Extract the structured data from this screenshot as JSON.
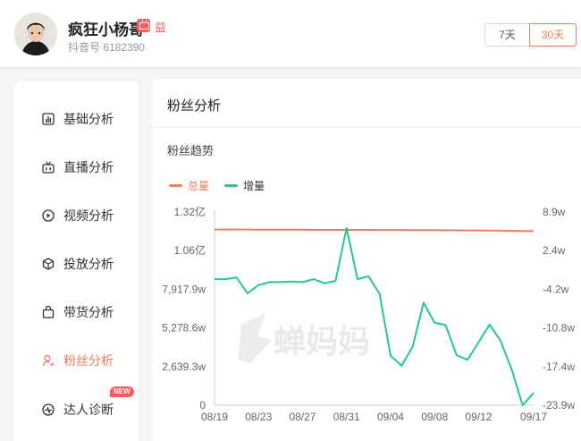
{
  "user": {
    "name": "疯狂小杨哥",
    "vip_label": "益",
    "douyin_id": "抖音号 6182390"
  },
  "range": {
    "options": [
      "7天",
      "30天"
    ],
    "selected": "30天"
  },
  "sidebar": {
    "items": [
      {
        "label": "基础分析",
        "icon": "bar-chart-icon"
      },
      {
        "label": "直播分析",
        "icon": "live-icon"
      },
      {
        "label": "视频分析",
        "icon": "play-circle-icon"
      },
      {
        "label": "投放分析",
        "icon": "cube-icon"
      },
      {
        "label": "带货分析",
        "icon": "shopping-bag-icon"
      },
      {
        "label": "粉丝分析",
        "icon": "user-icon",
        "active": true
      },
      {
        "label": "达人诊断",
        "icon": "diagnosis-icon",
        "badge": "NEW"
      }
    ]
  },
  "main": {
    "title": "粉丝分析",
    "subtitle": "粉丝趋势"
  },
  "watermark": "蝉妈妈",
  "colors": {
    "accent": "#f07c56",
    "total_line": "#f07c56",
    "increment_line": "#25c98e"
  },
  "chart_data": {
    "type": "line",
    "x": [
      "08/19",
      "08/20",
      "08/21",
      "08/22",
      "08/23",
      "08/24",
      "08/25",
      "08/26",
      "08/27",
      "08/28",
      "08/29",
      "08/30",
      "08/31",
      "09/01",
      "09/02",
      "09/03",
      "09/04",
      "09/05",
      "09/06",
      "09/07",
      "09/08",
      "09/09",
      "09/10",
      "09/11",
      "09/12",
      "09/13",
      "09/14",
      "09/15",
      "09/16",
      "09/17"
    ],
    "x_tick_labels": [
      "08/19",
      "08/23",
      "08/27",
      "08/31",
      "09/04",
      "09/08",
      "09/12",
      "09/17"
    ],
    "series": [
      {
        "name": "总量",
        "axis": "left",
        "values": [
          1.2,
          1.2,
          1.2,
          1.2,
          1.199,
          1.199,
          1.199,
          1.199,
          1.199,
          1.198,
          1.198,
          1.198,
          1.198,
          1.198,
          1.198,
          1.197,
          1.197,
          1.197,
          1.196,
          1.196,
          1.196,
          1.195,
          1.195,
          1.194,
          1.194,
          1.193,
          1.192,
          1.191,
          1.19,
          1.189
        ]
      },
      {
        "name": "增量",
        "axis": "right",
        "values": [
          -2.5,
          -2.5,
          -2.2,
          -4.9,
          -3.5,
          -3.0,
          -3.0,
          -2.9,
          -3.0,
          -2.5,
          -3.2,
          -2.8,
          6.2,
          -2.5,
          -2.0,
          -5.0,
          -15.5,
          -17.2,
          -14.0,
          -6.5,
          -9.9,
          -10.3,
          -15.4,
          -16.2,
          -13.2,
          -10.2,
          -13.0,
          -17.8,
          -23.9,
          -21.8
        ]
      }
    ],
    "y_left": {
      "ticks": [
        "0",
        "2,639.3w",
        "5,278.6w",
        "7,917.9w",
        "1.06亿",
        "1.32亿"
      ],
      "ylim": [
        0,
        1.32
      ]
    },
    "y_right": {
      "ticks": [
        "-23.9w",
        "-17.4w",
        "-10.8w",
        "-4.2w",
        "2.4w",
        "8.9w"
      ],
      "ylim": [
        -23.9,
        8.9
      ]
    },
    "legend": "top-left",
    "grid": false
  }
}
